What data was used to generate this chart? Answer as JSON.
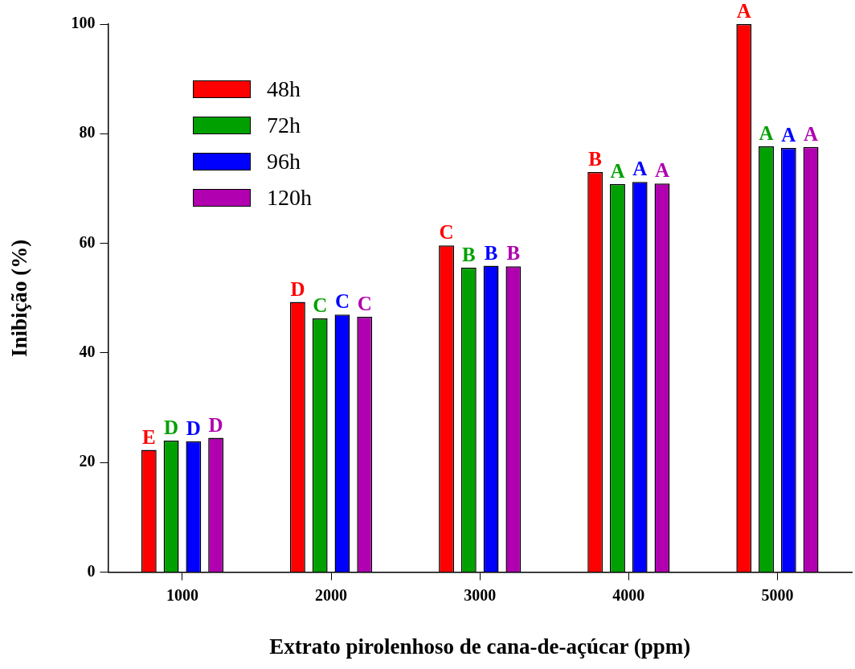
{
  "chart_data": {
    "type": "bar",
    "xlabel": "Extrato pirolenhoso de cana-de-açúcar (ppm)",
    "ylabel": "Inibição (%)",
    "categories": [
      "1000",
      "2000",
      "3000",
      "4000",
      "5000"
    ],
    "ylim": [
      0,
      100
    ],
    "yticks": [
      0,
      20,
      40,
      60,
      80,
      100
    ],
    "grid": false,
    "legend": "top left",
    "series": [
      {
        "name": "48h",
        "color": "#ff0000",
        "values": [
          22.3,
          49.3,
          59.6,
          73.0,
          100
        ],
        "value_labels": [
          "E",
          "D",
          "C",
          "B",
          "A"
        ]
      },
      {
        "name": "72h",
        "color": "#00a000",
        "values": [
          24.0,
          46.3,
          55.6,
          70.8,
          77.7
        ],
        "value_labels": [
          "D",
          "C",
          "B",
          "A",
          "A"
        ]
      },
      {
        "name": "96h",
        "color": "#0000ff",
        "values": [
          23.9,
          47.0,
          55.9,
          71.2,
          77.4
        ],
        "value_labels": [
          "D",
          "C",
          "B",
          "A",
          "A"
        ]
      },
      {
        "name": "120h",
        "color": "#b000b0",
        "values": [
          24.5,
          46.6,
          55.8,
          70.9,
          77.6
        ],
        "value_labels": [
          "D",
          "C",
          "B",
          "A",
          "A"
        ]
      }
    ]
  }
}
